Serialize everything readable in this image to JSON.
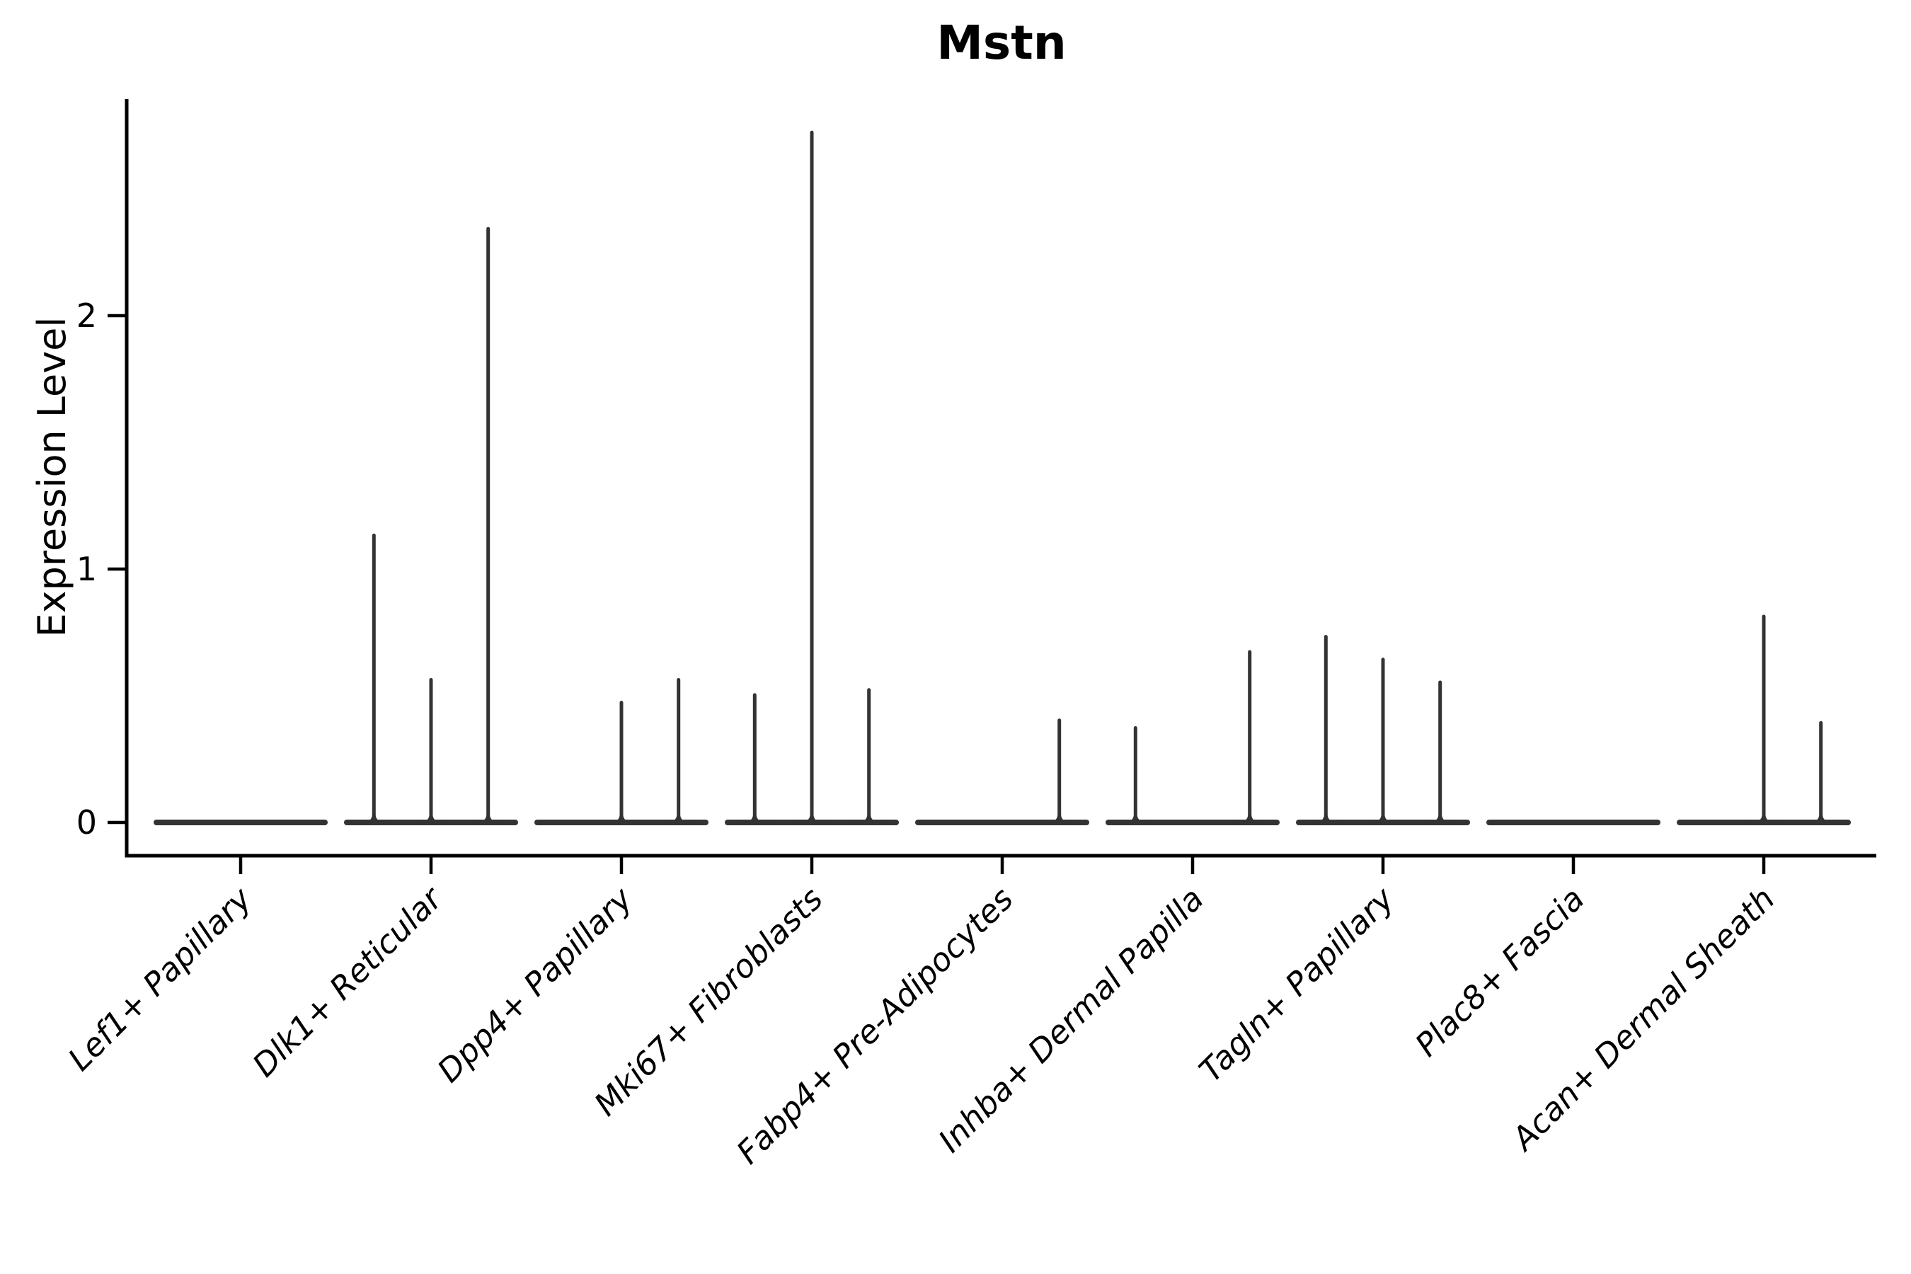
{
  "chart_data": {
    "type": "violin",
    "title": "Mstn",
    "ylabel": "Expression Level",
    "xlabel": "",
    "yticks": [
      0,
      1,
      2
    ],
    "ylim": [
      -0.13,
      2.85
    ],
    "grid": false,
    "legend": "none",
    "sub_violins_per_category": 3,
    "violin_body_value": 0,
    "colors": {
      "violin": "#333333",
      "axis": "#000000",
      "text": "#000000",
      "background": "#ffffff"
    },
    "categories": [
      "Lef1+ Papillary",
      "Dlk1+ Reticular",
      "Dpp4+ Papillary",
      "Mki67+ Fibroblasts",
      "Fabp4+ Pre-Adipocytes",
      "Inhba+ Dermal Papilla",
      "Tagln+ Papillary",
      "Plac8+ Fascia",
      "Acan+ Dermal Sheath"
    ],
    "groups": [
      {
        "category": "Lef1+ Papillary",
        "spike_maxima": [
          0,
          0,
          0
        ]
      },
      {
        "category": "Dlk1+ Reticular",
        "spike_maxima": [
          1.14,
          0.57,
          2.35
        ]
      },
      {
        "category": "Dpp4+ Papillary",
        "spike_maxima": [
          0,
          0.48,
          0.57
        ]
      },
      {
        "category": "Mki67+ Fibroblasts",
        "spike_maxima": [
          0.51,
          2.73,
          0.53
        ]
      },
      {
        "category": "Fabp4+ Pre-Adipocytes",
        "spike_maxima": [
          0,
          0,
          0.41
        ]
      },
      {
        "category": "Inhba+ Dermal Papilla",
        "spike_maxima": [
          0.38,
          0,
          0.68
        ]
      },
      {
        "category": "Tagln+ Papillary",
        "spike_maxima": [
          0.74,
          0.65,
          0.56
        ]
      },
      {
        "category": "Plac8+ Fascia",
        "spike_maxima": [
          0,
          0,
          0
        ]
      },
      {
        "category": "Acan+ Dermal Sheath",
        "spike_maxima": [
          0,
          0.82,
          0.4
        ]
      }
    ]
  }
}
